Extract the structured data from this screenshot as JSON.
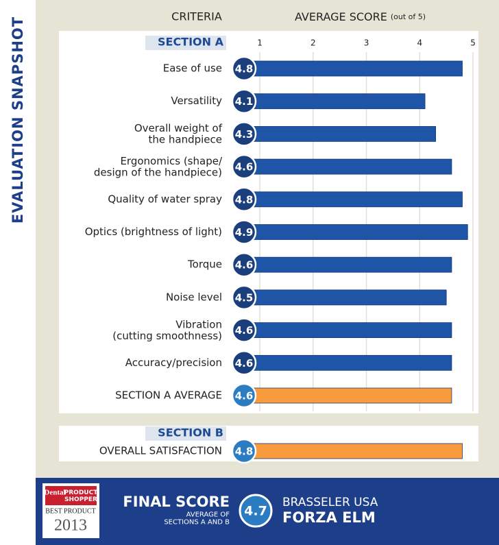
{
  "side_title": "EVALUATION SNAPSHOT",
  "chart_data": {
    "type": "bar",
    "category_header": "CRITERIA",
    "x_axis_label": "AVERAGE SCORE",
    "x_axis_note": "(out of 5)",
    "xlim": [
      0.8,
      5.1
    ],
    "xticks": [
      1,
      2,
      3,
      4,
      5
    ],
    "grid": true,
    "sections": [
      {
        "name": "SECTION A",
        "categories": [
          "Ease of use",
          "Versatility",
          "Overall weight of\nthe handpiece",
          "Ergonomics (shape/\ndesign of the handpiece)",
          "Quality of water spray",
          "Optics (brightness of light)",
          "Torque",
          "Noise level",
          "Vibration\n(cutting smoothness)",
          "Accuracy/precision",
          "SECTION A AVERAGE"
        ],
        "values": [
          4.8,
          4.1,
          4.3,
          4.6,
          4.8,
          4.9,
          4.6,
          4.5,
          4.6,
          4.6,
          4.6
        ],
        "colors": [
          "#1f55a6",
          "#1f55a6",
          "#1f55a6",
          "#1f55a6",
          "#1f55a6",
          "#1f55a6",
          "#1f55a6",
          "#1f55a6",
          "#1f55a6",
          "#1f55a6",
          "#f89b3c"
        ]
      },
      {
        "name": "SECTION B",
        "categories": [
          "OVERALL SATISFACTION"
        ],
        "values": [
          4.8
        ],
        "colors": [
          "#f89b3c"
        ]
      }
    ]
  },
  "final": {
    "title": "FINAL SCORE",
    "subtitle": "AVERAGE OF\nSECTIONS A AND B",
    "value": 4.7,
    "brand": "BRASSELER USA",
    "product": "FORZA ELM"
  },
  "logo": {
    "brand": "Dental",
    "name": "PRODUCT\nSHOPPER",
    "award": "BEST PRODUCT",
    "year": "2013"
  }
}
